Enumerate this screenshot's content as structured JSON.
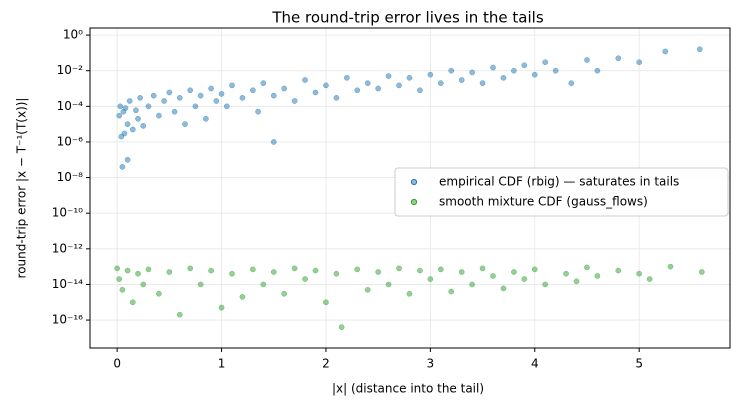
{
  "chart_data": {
    "type": "scatter",
    "title": "The round-trip error lives in the tails",
    "x_label": "|x| (distance into the tail)",
    "y_label": "round-trip error |x − T⁻¹(T(x))|",
    "log_y": true,
    "grid": true,
    "legend_loc": "center right",
    "xlim": [
      -0.26,
      5.87
    ],
    "xticks": [
      0,
      1,
      2,
      3,
      4,
      5
    ],
    "ylim": [
      2.7e-18,
      2.5
    ],
    "yticks": [
      {
        "value": 1,
        "label": "10⁰"
      },
      {
        "value": 0.01,
        "label": "10⁻²"
      },
      {
        "value": 0.0001,
        "label": "10⁻⁴"
      },
      {
        "value": 1e-06,
        "label": "10⁻⁶"
      },
      {
        "value": 1e-08,
        "label": "10⁻⁸"
      },
      {
        "value": 1e-10,
        "label": "10⁻¹⁰"
      },
      {
        "value": 1e-12,
        "label": "10⁻¹²"
      },
      {
        "value": 1e-14,
        "label": "10⁻¹⁴"
      },
      {
        "value": 1e-16,
        "label": "10⁻¹⁶"
      }
    ],
    "series": [
      {
        "name": "empirical CDF (rbig) — saturates in tails",
        "color": "#1f77b4",
        "x": [
          0.02,
          0.03,
          0.04,
          0.05,
          0.06,
          0.07,
          0.08,
          0.1,
          0.12,
          0.15,
          0.18,
          0.2,
          0.22,
          0.25,
          0.3,
          0.35,
          0.4,
          0.45,
          0.5,
          0.55,
          0.6,
          0.65,
          0.7,
          0.75,
          0.8,
          0.85,
          0.9,
          0.95,
          1.0,
          1.05,
          1.1,
          1.2,
          1.3,
          1.35,
          1.4,
          1.5,
          1.6,
          1.7,
          1.8,
          1.9,
          2.0,
          2.1,
          2.2,
          2.3,
          2.4,
          2.5,
          2.6,
          2.7,
          2.8,
          2.9,
          3.0,
          3.1,
          3.2,
          3.3,
          3.4,
          3.5,
          3.6,
          3.7,
          3.8,
          3.9,
          4.0,
          4.1,
          4.2,
          4.35,
          4.5,
          4.6,
          4.8,
          5.0,
          5.25,
          5.58,
          1.5,
          0.1
        ],
        "values": [
          3e-05,
          0.0001,
          2e-06,
          4e-08,
          5e-05,
          3e-06,
          8e-05,
          1e-05,
          0.0002,
          5e-06,
          6e-05,
          2e-05,
          0.0003,
          8e-06,
          0.0001,
          0.0004,
          3e-05,
          0.0002,
          0.0006,
          5e-05,
          0.0003,
          1e-05,
          0.0008,
          0.0001,
          0.0004,
          2e-05,
          0.001,
          0.0002,
          0.0005,
          0.0001,
          0.0015,
          0.0003,
          0.0008,
          5e-05,
          0.002,
          0.0004,
          0.001,
          0.0002,
          0.003,
          0.0006,
          0.0015,
          0.0003,
          0.004,
          0.0008,
          0.002,
          0.001,
          0.005,
          0.0015,
          0.004,
          0.0008,
          0.006,
          0.002,
          0.01,
          0.003,
          0.008,
          0.002,
          0.015,
          0.004,
          0.01,
          0.02,
          0.006,
          0.03,
          0.01,
          0.002,
          0.04,
          0.01,
          0.05,
          0.03,
          0.12,
          0.16,
          1e-06,
          1e-07
        ]
      },
      {
        "name": "smooth mixture CDF (gauss_flows)",
        "color": "#2ca02c",
        "x": [
          0.0,
          0.02,
          0.05,
          0.1,
          0.15,
          0.2,
          0.25,
          0.3,
          0.4,
          0.5,
          0.6,
          0.7,
          0.8,
          0.9,
          1.0,
          1.1,
          1.2,
          1.3,
          1.4,
          1.5,
          1.6,
          1.7,
          1.8,
          1.9,
          2.0,
          2.1,
          2.15,
          2.3,
          2.4,
          2.5,
          2.6,
          2.7,
          2.8,
          2.9,
          3.0,
          3.1,
          3.2,
          3.3,
          3.4,
          3.5,
          3.6,
          3.7,
          3.8,
          3.9,
          4.0,
          4.1,
          4.3,
          4.4,
          4.5,
          4.6,
          4.8,
          5.0,
          5.1,
          5.3,
          5.6
        ],
        "values": [
          8e-14,
          2e-14,
          5e-15,
          6e-14,
          1e-15,
          4e-14,
          1e-14,
          7e-14,
          3e-15,
          5e-14,
          2e-16,
          8e-14,
          1e-14,
          6e-14,
          5e-16,
          4e-14,
          2e-15,
          7e-14,
          1e-14,
          5e-14,
          3e-15,
          8e-14,
          2e-14,
          6e-14,
          1e-15,
          4e-14,
          4e-17,
          7e-14,
          5e-15,
          5e-14,
          1e-14,
          8e-14,
          3e-15,
          6e-14,
          2e-14,
          7e-14,
          4e-15,
          5e-14,
          1e-14,
          8e-14,
          3e-14,
          6e-15,
          5e-14,
          2e-14,
          7e-14,
          1e-14,
          4e-14,
          1.5e-14,
          9e-14,
          3e-14,
          6e-14,
          4e-14,
          2e-14,
          1e-13,
          5e-14
        ]
      }
    ]
  }
}
